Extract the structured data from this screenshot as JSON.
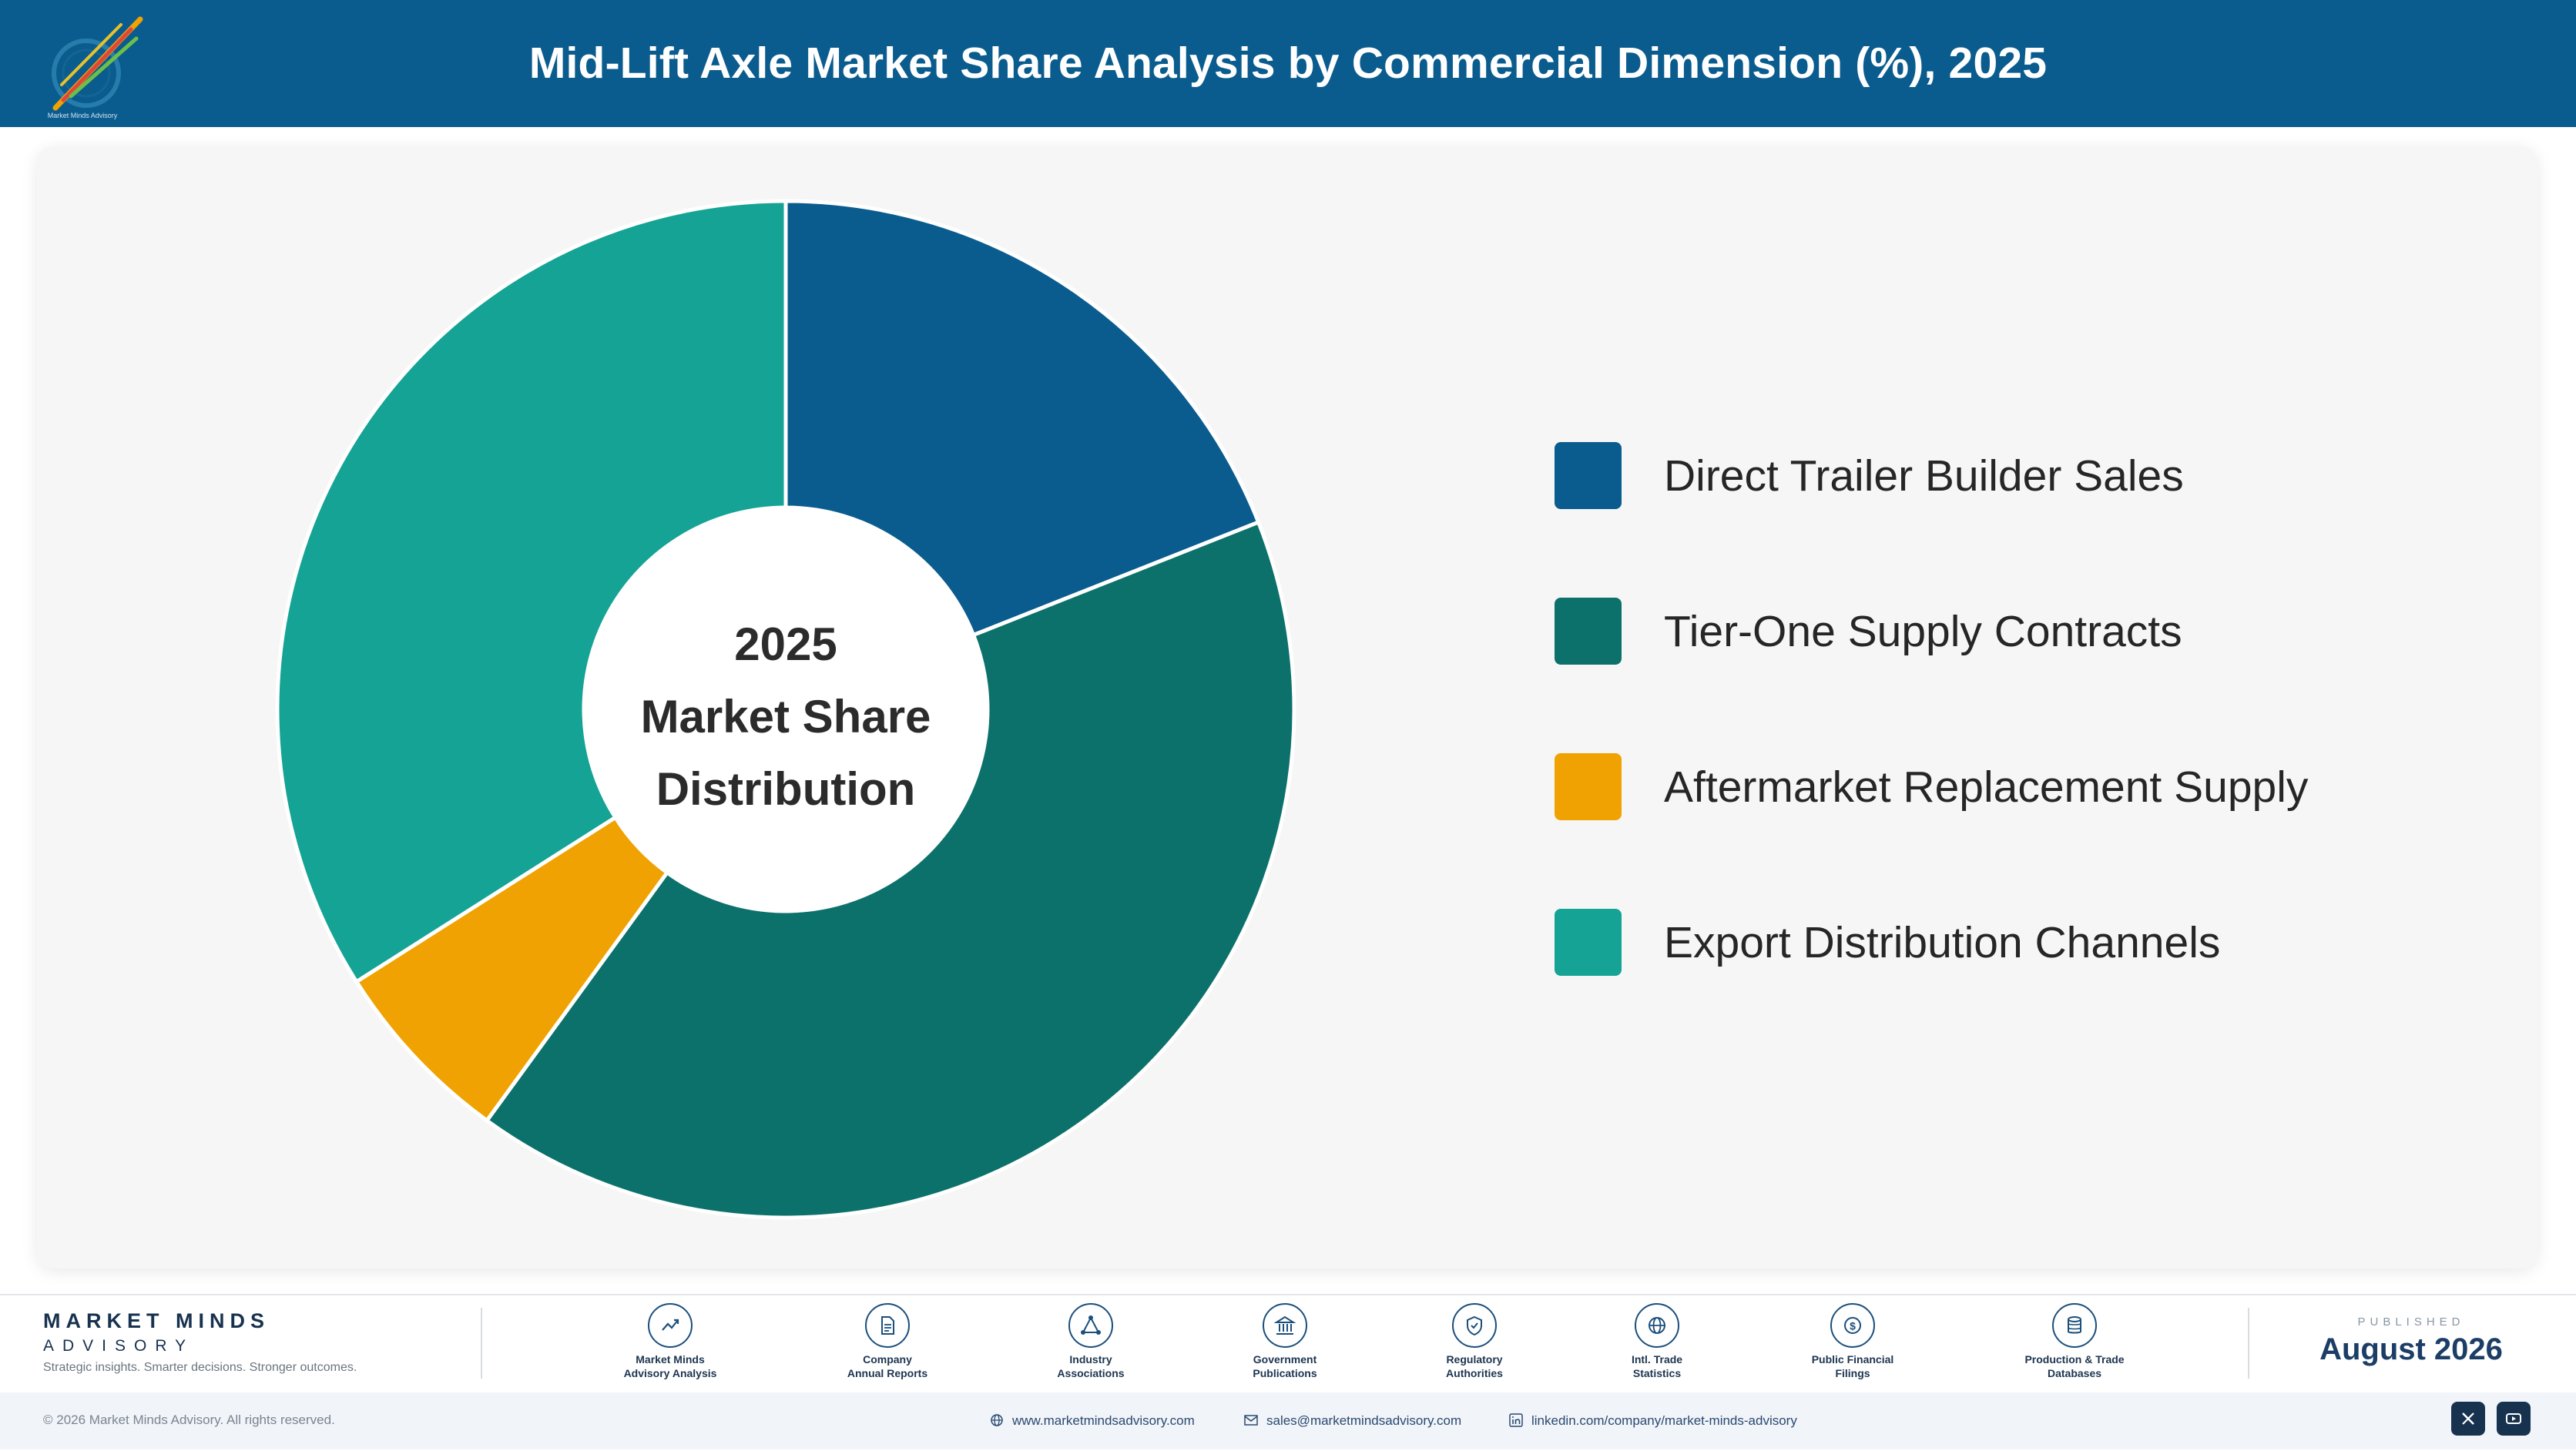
{
  "header": {
    "title": "Mid-Lift Axle Market Share Analysis by Commercial Dimension (%), 2025",
    "logo_icon": "market-minds-logo"
  },
  "chart_data": {
    "type": "pie",
    "title": "Mid-Lift Axle Market Share Analysis by Commercial Dimension (%), 2025",
    "center_label": [
      "2025",
      "Market Share",
      "Distribution"
    ],
    "legend_position": "right",
    "slices": [
      {
        "name": "Direct Trailer Builder Sales",
        "value": 19,
        "color": "#0b5c8e"
      },
      {
        "name": "Tier-One Supply Contracts",
        "value": 41,
        "color": "#0c716b"
      },
      {
        "name": "Aftermarket Replacement Supply",
        "value": 6,
        "color": "#f0a202"
      },
      {
        "name": "Export Distribution Channels",
        "value": 34,
        "color": "#14a394"
      }
    ]
  },
  "footer": {
    "brand": "MARKET MINDS",
    "brand_sub": "ADVISORY",
    "tagline": "Strategic insights. Smarter decisions. Stronger outcomes.",
    "sources": [
      {
        "label1": "Market Minds",
        "label2": "Advisory Analysis",
        "icon": "trend-icon"
      },
      {
        "label1": "Company",
        "label2": "Annual Reports",
        "icon": "document-icon"
      },
      {
        "label1": "Industry",
        "label2": "Associations",
        "icon": "network-icon"
      },
      {
        "label1": "Government",
        "label2": "Publications",
        "icon": "government-icon"
      },
      {
        "label1": "Regulatory",
        "label2": "Authorities",
        "icon": "shield-icon"
      },
      {
        "label1": "Intl. Trade",
        "label2": "Statistics",
        "icon": "globe-icon"
      },
      {
        "label1": "Public Financial",
        "label2": "Filings",
        "icon": "dollar-icon"
      },
      {
        "label1": "Production & Trade",
        "label2": "Databases",
        "icon": "database-icon"
      }
    ],
    "published_label": "PUBLISHED",
    "published_date": "August 2026",
    "copyright": "© 2026 Market Minds Advisory. All rights reserved.",
    "website": "www.marketmindsadvisory.com",
    "email": "sales@marketmindsadvisory.com",
    "linkedin": "linkedin.com/company/market-minds-advisory"
  }
}
